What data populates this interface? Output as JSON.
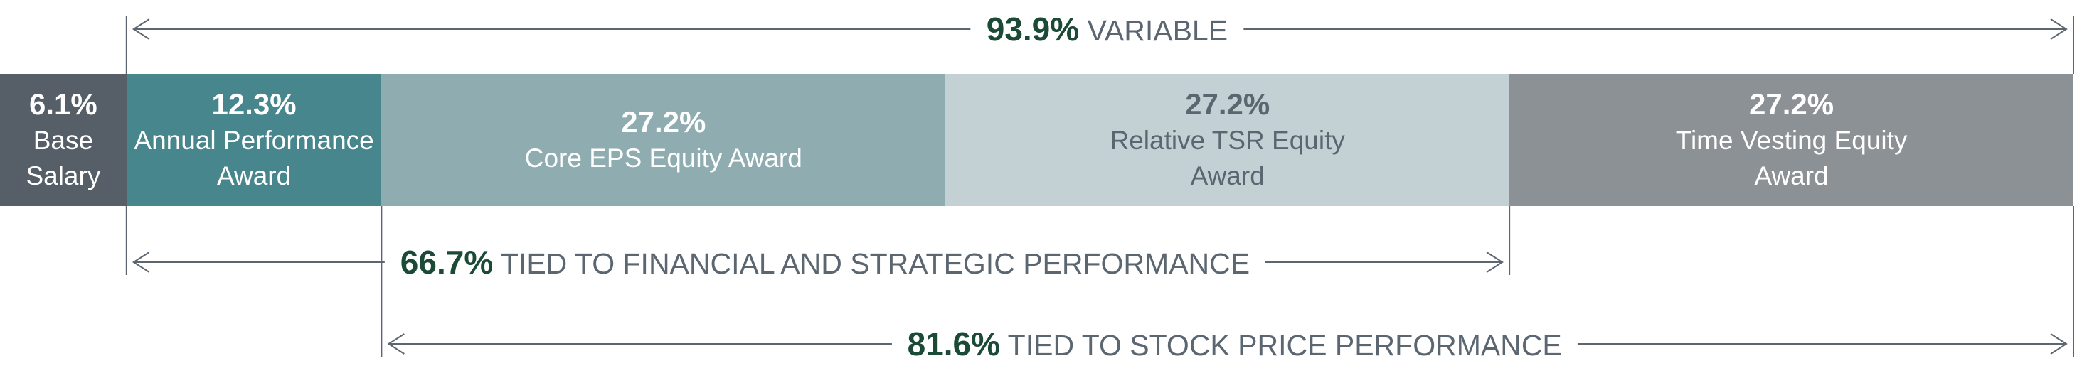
{
  "chart_data": {
    "type": "stacked-bar",
    "categories": [
      "Base Salary",
      "Annual Performance Award",
      "Core EPS Equity Award",
      "Relative TSR Equity Award",
      "Time Vesting Equity Award"
    ],
    "values": [
      6.1,
      12.3,
      27.2,
      27.2,
      27.2
    ],
    "value_labels": [
      "6.1%",
      "12.3%",
      "27.2%",
      "27.2%",
      "27.2%"
    ],
    "colors": [
      "#565f68",
      "#46868c",
      "#8fadb1",
      "#c3d0d4",
      "#8c9196"
    ],
    "brackets": {
      "values": [
        93.9,
        66.7,
        81.6
      ],
      "value_labels": [
        "93.9%",
        "66.7%",
        "81.6%"
      ],
      "labels": [
        "VARIABLE",
        "TIED TO FINANCIAL AND STRATEGIC PERFORMANCE",
        "TIED TO STOCK PRICE PERFORMANCE"
      ]
    }
  }
}
